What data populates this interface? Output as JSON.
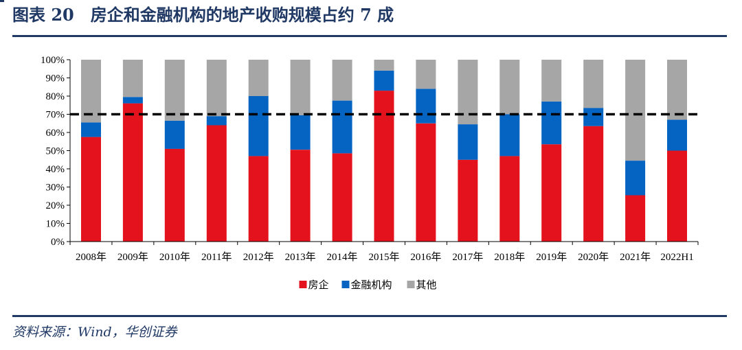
{
  "header": {
    "title": "图表 20　房企和金融机构的地产收购规模占约 7 成"
  },
  "footer": {
    "source": "资料来源：Wind，华创证券"
  },
  "chart_data": {
    "type": "bar",
    "stacked": true,
    "title": "房企和金融机构的地产收购规模占约 7 成",
    "categories": [
      "2008年",
      "2009年",
      "2010年",
      "2011年",
      "2012年",
      "2013年",
      "2014年",
      "2015年",
      "2016年",
      "2017年",
      "2018年",
      "2019年",
      "2020年",
      "2021年",
      "2022H1"
    ],
    "series": [
      {
        "name": "房企",
        "color": "#e3121c",
        "values": [
          57.5,
          76,
          51,
          64,
          47,
          50.5,
          48.5,
          83,
          65,
          45,
          47,
          53.5,
          63.5,
          25.5,
          50
        ]
      },
      {
        "name": "金融机构",
        "color": "#0563c1",
        "values": [
          8,
          3.5,
          15.5,
          5,
          33,
          19,
          29,
          11,
          19,
          19.5,
          23,
          23.5,
          10,
          19,
          17
        ]
      },
      {
        "name": "其他",
        "color": "#a6a6a6",
        "values": [
          34.5,
          20.5,
          33.5,
          31,
          20,
          30.5,
          22.5,
          6,
          16,
          35.5,
          30,
          23,
          26.5,
          55.5,
          33
        ]
      }
    ],
    "y_ticks": [
      "0%",
      "10%",
      "20%",
      "30%",
      "40%",
      "50%",
      "60%",
      "70%",
      "80%",
      "90%",
      "100%"
    ],
    "ylim": [
      0,
      100
    ],
    "reference_line": {
      "value": 70,
      "style": "dashed",
      "color": "#000000"
    },
    "legend": {
      "position": "bottom",
      "entries": [
        "房企",
        "金融机构",
        "其他"
      ]
    },
    "grid": false
  }
}
